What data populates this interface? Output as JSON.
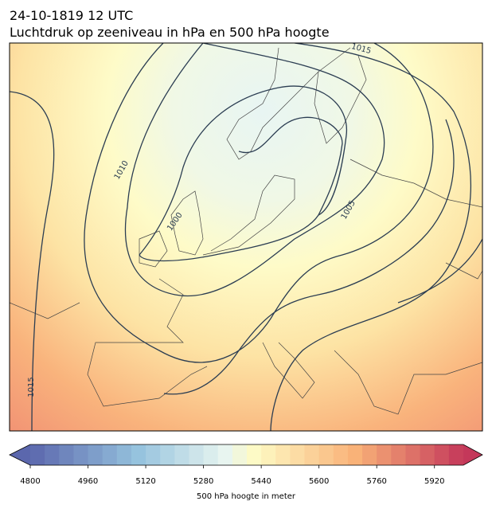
{
  "header": {
    "title": "24-10-1819 12 UTC",
    "subtitle": "Luchtdruk op zeeniveau in hPa en 500 hPa hoogte"
  },
  "map": {
    "contour_labels": [
      "1015",
      "1010",
      "1000",
      "1005",
      "1015"
    ]
  },
  "colorbar": {
    "range": [
      4800,
      6000
    ],
    "step": 40,
    "ticks": [
      4800,
      4960,
      5120,
      5280,
      5440,
      5600,
      5760,
      5920
    ],
    "label": "500 hPa hoogte in meter"
  }
}
